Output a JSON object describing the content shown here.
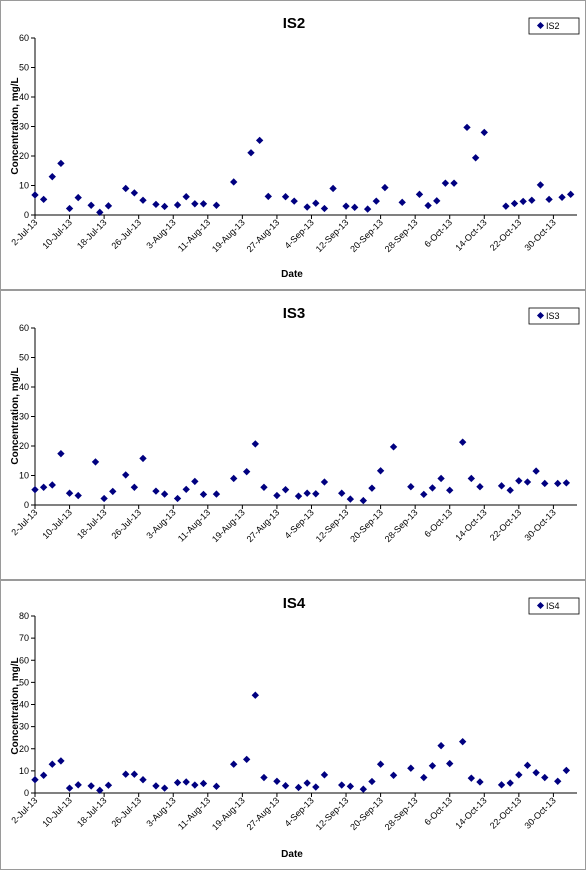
{
  "chart_data": [
    {
      "type": "scatter",
      "title": "IS2",
      "xlabel": "Date",
      "ylabel": "Concentration, mg/L",
      "ylim": [
        0,
        60
      ],
      "yticks": [
        "0",
        "10",
        "20",
        "30",
        "40",
        "50",
        "60"
      ],
      "xlim": [
        "2013-07-02",
        "2013-10-31"
      ],
      "xticks": [
        "2-Jul-13",
        "10-Jul-13",
        "18-Jul-13",
        "26-Jul-13",
        "3-Aug-13",
        "11-Aug-13",
        "19-Aug-13",
        "27-Aug-13",
        "4-Sep-13",
        "12-Sep-13",
        "20-Sep-13",
        "28-Sep-13",
        "6-Oct-13",
        "14-Oct-13",
        "22-Oct-13",
        "30-Oct-13"
      ],
      "legend": "top-right",
      "grid": false,
      "marker_color": "#000080",
      "series": [
        {
          "name": "IS2",
          "points": [
            {
              "date": "2013-07-02",
              "y": 6.8
            },
            {
              "date": "2013-07-04",
              "y": 5.3
            },
            {
              "date": "2013-07-06",
              "y": 13.0
            },
            {
              "date": "2013-07-08",
              "y": 17.5
            },
            {
              "date": "2013-07-10",
              "y": 2.2
            },
            {
              "date": "2013-07-12",
              "y": 5.9
            },
            {
              "date": "2013-07-15",
              "y": 3.3
            },
            {
              "date": "2013-07-17",
              "y": 0.9
            },
            {
              "date": "2013-07-19",
              "y": 3.1
            },
            {
              "date": "2013-07-23",
              "y": 9.0
            },
            {
              "date": "2013-07-25",
              "y": 7.5
            },
            {
              "date": "2013-07-27",
              "y": 5.0
            },
            {
              "date": "2013-07-30",
              "y": 3.6
            },
            {
              "date": "2013-08-01",
              "y": 2.9
            },
            {
              "date": "2013-08-04",
              "y": 3.4
            },
            {
              "date": "2013-08-06",
              "y": 6.2
            },
            {
              "date": "2013-08-08",
              "y": 3.8
            },
            {
              "date": "2013-08-10",
              "y": 3.8
            },
            {
              "date": "2013-08-13",
              "y": 3.3
            },
            {
              "date": "2013-08-17",
              "y": 11.2
            },
            {
              "date": "2013-08-21",
              "y": 21.1
            },
            {
              "date": "2013-08-23",
              "y": 25.3
            },
            {
              "date": "2013-08-25",
              "y": 6.3
            },
            {
              "date": "2013-08-29",
              "y": 6.2
            },
            {
              "date": "2013-08-31",
              "y": 4.7
            },
            {
              "date": "2013-09-03",
              "y": 2.7
            },
            {
              "date": "2013-09-05",
              "y": 4.0
            },
            {
              "date": "2013-09-07",
              "y": 2.2
            },
            {
              "date": "2013-09-09",
              "y": 9.0
            },
            {
              "date": "2013-09-12",
              "y": 3.0
            },
            {
              "date": "2013-09-14",
              "y": 2.6
            },
            {
              "date": "2013-09-17",
              "y": 2.0
            },
            {
              "date": "2013-09-19",
              "y": 4.7
            },
            {
              "date": "2013-09-21",
              "y": 9.3
            },
            {
              "date": "2013-09-25",
              "y": 4.3
            },
            {
              "date": "2013-09-29",
              "y": 7.0
            },
            {
              "date": "2013-10-01",
              "y": 3.2
            },
            {
              "date": "2013-10-03",
              "y": 4.8
            },
            {
              "date": "2013-10-05",
              "y": 10.8
            },
            {
              "date": "2013-10-07",
              "y": 10.8
            },
            {
              "date": "2013-10-10",
              "y": 29.7
            },
            {
              "date": "2013-10-12",
              "y": 19.4
            },
            {
              "date": "2013-10-14",
              "y": 28.0
            },
            {
              "date": "2013-10-19",
              "y": 3.0
            },
            {
              "date": "2013-10-21",
              "y": 3.9
            },
            {
              "date": "2013-10-23",
              "y": 4.6
            },
            {
              "date": "2013-10-25",
              "y": 5.0
            },
            {
              "date": "2013-10-27",
              "y": 10.2
            },
            {
              "date": "2013-10-29",
              "y": 5.3
            },
            {
              "date": "2013-11-01",
              "y": 6.0
            },
            {
              "date": "2013-11-03",
              "y": 7.0
            }
          ]
        }
      ]
    },
    {
      "type": "scatter",
      "title": "IS3",
      "xlabel": "",
      "ylabel": "Concentration, mg/L",
      "ylim": [
        0,
        60
      ],
      "yticks": [
        "0",
        "10",
        "20",
        "30",
        "40",
        "50",
        "60"
      ],
      "xlim": [
        "2013-07-02",
        "2013-10-31"
      ],
      "xticks": [
        "2-Jul-13",
        "10-Jul-13",
        "18-Jul-13",
        "26-Jul-13",
        "3-Aug-13",
        "11-Aug-13",
        "19-Aug-13",
        "27-Aug-13",
        "4-Sep-13",
        "12-Sep-13",
        "20-Sep-13",
        "28-Sep-13",
        "6-Oct-13",
        "14-Oct-13",
        "22-Oct-13",
        "30-Oct-13"
      ],
      "legend": "top-right",
      "grid": false,
      "marker_color": "#000080",
      "series": [
        {
          "name": "IS3",
          "points": [
            {
              "date": "2013-07-02",
              "y": 5.2
            },
            {
              "date": "2013-07-04",
              "y": 6.0
            },
            {
              "date": "2013-07-06",
              "y": 6.8
            },
            {
              "date": "2013-07-08",
              "y": 17.4
            },
            {
              "date": "2013-07-10",
              "y": 4.0
            },
            {
              "date": "2013-07-12",
              "y": 3.2
            },
            {
              "date": "2013-07-16",
              "y": 14.6
            },
            {
              "date": "2013-07-18",
              "y": 2.2
            },
            {
              "date": "2013-07-20",
              "y": 4.6
            },
            {
              "date": "2013-07-23",
              "y": 10.2
            },
            {
              "date": "2013-07-25",
              "y": 6.0
            },
            {
              "date": "2013-07-27",
              "y": 15.8
            },
            {
              "date": "2013-07-30",
              "y": 4.7
            },
            {
              "date": "2013-08-01",
              "y": 3.7
            },
            {
              "date": "2013-08-04",
              "y": 2.2
            },
            {
              "date": "2013-08-06",
              "y": 5.3
            },
            {
              "date": "2013-08-08",
              "y": 8.0
            },
            {
              "date": "2013-08-10",
              "y": 3.6
            },
            {
              "date": "2013-08-13",
              "y": 3.7
            },
            {
              "date": "2013-08-17",
              "y": 9.0
            },
            {
              "date": "2013-08-20",
              "y": 11.3
            },
            {
              "date": "2013-08-22",
              "y": 20.7
            },
            {
              "date": "2013-08-24",
              "y": 6.0
            },
            {
              "date": "2013-08-27",
              "y": 3.2
            },
            {
              "date": "2013-08-29",
              "y": 5.2
            },
            {
              "date": "2013-09-01",
              "y": 3.0
            },
            {
              "date": "2013-09-03",
              "y": 4.0
            },
            {
              "date": "2013-09-05",
              "y": 3.8
            },
            {
              "date": "2013-09-07",
              "y": 7.8
            },
            {
              "date": "2013-09-11",
              "y": 4.0
            },
            {
              "date": "2013-09-13",
              "y": 2.0
            },
            {
              "date": "2013-09-16",
              "y": 1.5
            },
            {
              "date": "2013-09-18",
              "y": 5.7
            },
            {
              "date": "2013-09-20",
              "y": 11.6
            },
            {
              "date": "2013-09-23",
              "y": 19.7
            },
            {
              "date": "2013-09-27",
              "y": 6.2
            },
            {
              "date": "2013-09-30",
              "y": 3.6
            },
            {
              "date": "2013-10-02",
              "y": 5.8
            },
            {
              "date": "2013-10-04",
              "y": 9.0
            },
            {
              "date": "2013-10-06",
              "y": 5.0
            },
            {
              "date": "2013-10-09",
              "y": 21.3
            },
            {
              "date": "2013-10-11",
              "y": 9.0
            },
            {
              "date": "2013-10-13",
              "y": 6.2
            },
            {
              "date": "2013-10-18",
              "y": 6.5
            },
            {
              "date": "2013-10-20",
              "y": 5.0
            },
            {
              "date": "2013-10-22",
              "y": 8.2
            },
            {
              "date": "2013-10-24",
              "y": 7.8
            },
            {
              "date": "2013-10-26",
              "y": 11.5
            },
            {
              "date": "2013-10-28",
              "y": 7.3
            },
            {
              "date": "2013-10-31",
              "y": 7.3
            },
            {
              "date": "2013-11-02",
              "y": 7.5
            }
          ]
        }
      ]
    },
    {
      "type": "scatter",
      "title": "IS4",
      "xlabel": "Date",
      "ylabel": "Concentration, mg/L",
      "ylim": [
        0,
        80
      ],
      "yticks": [
        "0",
        "10",
        "20",
        "30",
        "40",
        "50",
        "60",
        "70",
        "80"
      ],
      "xlim": [
        "2013-07-02",
        "2013-10-31"
      ],
      "xticks": [
        "2-Jul-13",
        "10-Jul-13",
        "18-Jul-13",
        "26-Jul-13",
        "3-Aug-13",
        "11-Aug-13",
        "19-Aug-13",
        "27-Aug-13",
        "4-Sep-13",
        "12-Sep-13",
        "20-Sep-13",
        "28-Sep-13",
        "6-Oct-13",
        "14-Oct-13",
        "22-Oct-13",
        "30-Oct-13"
      ],
      "legend": "top-right",
      "grid": false,
      "marker_color": "#000080",
      "series": [
        {
          "name": "IS4",
          "points": [
            {
              "date": "2013-07-02",
              "y": 6.0
            },
            {
              "date": "2013-07-04",
              "y": 8.0
            },
            {
              "date": "2013-07-06",
              "y": 13.0
            },
            {
              "date": "2013-07-08",
              "y": 14.5
            },
            {
              "date": "2013-07-10",
              "y": 2.2
            },
            {
              "date": "2013-07-12",
              "y": 3.7
            },
            {
              "date": "2013-07-15",
              "y": 3.2
            },
            {
              "date": "2013-07-17",
              "y": 1.2
            },
            {
              "date": "2013-07-19",
              "y": 3.5
            },
            {
              "date": "2013-07-23",
              "y": 8.5
            },
            {
              "date": "2013-07-25",
              "y": 8.5
            },
            {
              "date": "2013-07-27",
              "y": 6.0
            },
            {
              "date": "2013-07-30",
              "y": 3.2
            },
            {
              "date": "2013-08-01",
              "y": 2.2
            },
            {
              "date": "2013-08-04",
              "y": 4.7
            },
            {
              "date": "2013-08-06",
              "y": 5.0
            },
            {
              "date": "2013-08-08",
              "y": 3.6
            },
            {
              "date": "2013-08-10",
              "y": 4.3
            },
            {
              "date": "2013-08-13",
              "y": 3.0
            },
            {
              "date": "2013-08-17",
              "y": 13.0
            },
            {
              "date": "2013-08-20",
              "y": 15.2
            },
            {
              "date": "2013-08-22",
              "y": 44.2
            },
            {
              "date": "2013-08-24",
              "y": 7.0
            },
            {
              "date": "2013-08-27",
              "y": 5.3
            },
            {
              "date": "2013-08-29",
              "y": 3.3
            },
            {
              "date": "2013-09-01",
              "y": 2.5
            },
            {
              "date": "2013-09-03",
              "y": 4.5
            },
            {
              "date": "2013-09-05",
              "y": 2.7
            },
            {
              "date": "2013-09-07",
              "y": 8.2
            },
            {
              "date": "2013-09-11",
              "y": 3.6
            },
            {
              "date": "2013-09-13",
              "y": 3.0
            },
            {
              "date": "2013-09-16",
              "y": 1.7
            },
            {
              "date": "2013-09-18",
              "y": 5.2
            },
            {
              "date": "2013-09-20",
              "y": 13.0
            },
            {
              "date": "2013-09-23",
              "y": 8.0
            },
            {
              "date": "2013-09-27",
              "y": 11.2
            },
            {
              "date": "2013-09-30",
              "y": 7.0
            },
            {
              "date": "2013-10-02",
              "y": 12.3
            },
            {
              "date": "2013-10-04",
              "y": 21.4
            },
            {
              "date": "2013-10-06",
              "y": 13.3
            },
            {
              "date": "2013-10-09",
              "y": 23.2
            },
            {
              "date": "2013-10-11",
              "y": 6.7
            },
            {
              "date": "2013-10-13",
              "y": 5.0
            },
            {
              "date": "2013-10-18",
              "y": 3.7
            },
            {
              "date": "2013-10-20",
              "y": 4.5
            },
            {
              "date": "2013-10-22",
              "y": 8.2
            },
            {
              "date": "2013-10-24",
              "y": 12.5
            },
            {
              "date": "2013-10-26",
              "y": 9.2
            },
            {
              "date": "2013-10-28",
              "y": 7.0
            },
            {
              "date": "2013-10-31",
              "y": 5.3
            },
            {
              "date": "2013-11-02",
              "y": 10.2
            }
          ]
        }
      ]
    }
  ]
}
